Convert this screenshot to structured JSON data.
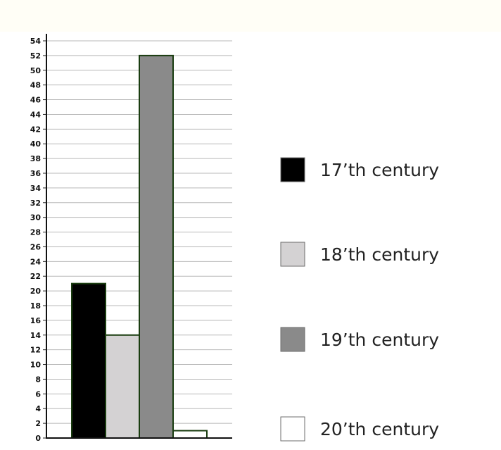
{
  "chart_data": {
    "type": "bar",
    "categories": [
      "17'th century",
      "18'th century",
      "19'th century",
      "20'th century"
    ],
    "values": [
      21,
      14,
      52,
      1
    ],
    "colors": [
      "#000000",
      "#d4d2d3",
      "#8a8a8a",
      "#ffffff"
    ],
    "ylim": [
      0,
      54
    ],
    "ytick_step": 2,
    "grid": true,
    "legend_position": "right",
    "legend": [
      {
        "label": "17’th century",
        "color": "#000000"
      },
      {
        "label": "18’th century",
        "color": "#d4d2d3"
      },
      {
        "label": "19’th century",
        "color": "#8a8a8a"
      },
      {
        "label": "20’th century",
        "color": "#ffffff"
      }
    ]
  }
}
